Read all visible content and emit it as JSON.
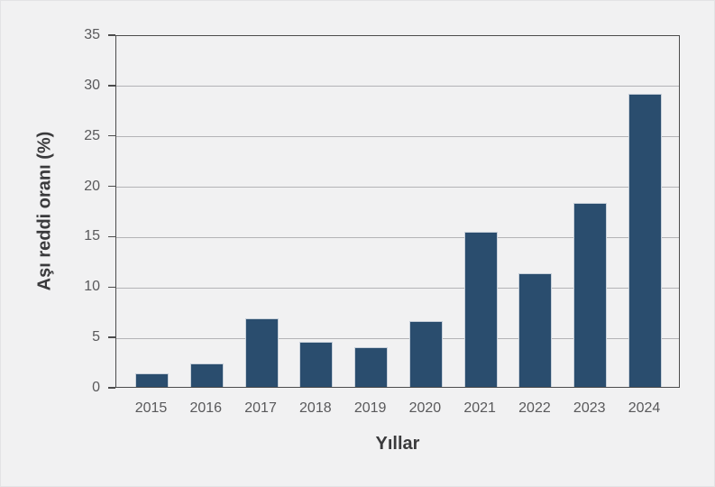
{
  "chart_data": {
    "type": "bar",
    "categories": [
      "2015",
      "2016",
      "2017",
      "2018",
      "2019",
      "2020",
      "2021",
      "2022",
      "2023",
      "2024"
    ],
    "values": [
      1.3,
      2.3,
      6.8,
      4.5,
      3.9,
      6.5,
      15.4,
      11.3,
      18.3,
      29.1
    ],
    "title": "",
    "xlabel": "Yıllar",
    "ylabel": "Aşı reddi oranı (%)",
    "ylim": [
      0,
      35
    ],
    "yticks": [
      0,
      5,
      10,
      15,
      20,
      25,
      30,
      35
    ],
    "grid": "horizontal",
    "legend": "none",
    "colors": {
      "bar_fill": "#2a4d6e",
      "bar_edge": "#c7d0da",
      "background": "#f1f1f2",
      "gridline": "#b3b3b6",
      "spine": "#4c4c4c",
      "tick_label": "#59595b",
      "axis_label": "#3a3a3c"
    }
  }
}
